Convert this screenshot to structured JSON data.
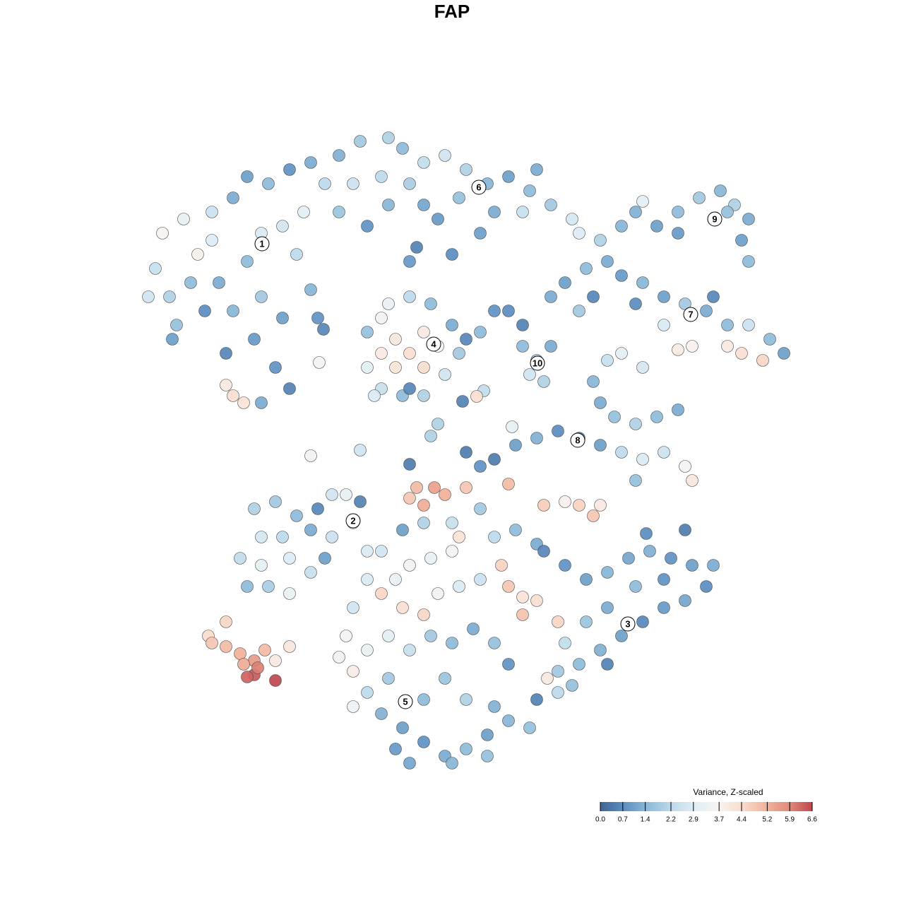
{
  "chart_data": {
    "type": "scatter",
    "title": "FAP",
    "xlim": [
      0,
      1280
    ],
    "ylim": [
      1280,
      0
    ],
    "x": [
      230,
      260,
      220,
      240,
      280,
      300,
      330,
      350,
      380,
      410,
      440,
      370,
      400,
      420,
      350,
      310,
      290,
      330,
      370,
      400,
      360,
      320,
      390,
      410,
      370,
      330,
      320,
      345,
      250,
      210,
      440,
      450,
      270,
      300,
      430,
      480,
      510,
      550,
      570,
      600,
      630,
      660,
      690,
      720,
      750,
      780,
      810,
      820,
      700,
      650,
      600,
      550,
      520,
      480,
      460,
      500,
      540,
      580,
      620,
      680,
      740,
      760,
      590,
      640,
      580,
      520,
      540,
      560,
      580,
      600,
      620,
      600,
      560,
      540,
      520,
      540,
      570,
      600,
      630,
      650,
      640,
      610,
      580,
      550,
      530,
      580,
      660,
      680,
      700,
      760,
      740,
      780,
      770,
      750,
      780,
      800,
      720,
      740,
      900,
      930,
      960,
      990,
      1020,
      1040,
      1060,
      1050,
      1030,
      960,
      880,
      1060,
      910,
      860,
      880,
      910,
      940,
      970,
      1000,
      1030,
      1060,
      1090,
      1110,
      1080,
      1050,
      1030,
      980,
      960,
      940,
      900,
      1010,
      850,
      830,
      820,
      840,
      840,
      860,
      880,
      910,
      850,
      870,
      900,
      930,
      960,
      820,
      850,
      880,
      910,
      940,
      970,
      980,
      900,
      790,
      760,
      730,
      700,
      680,
      660,
      620,
      360,
      390,
      420,
      450,
      470,
      490,
      500,
      470,
      440,
      400,
      370,
      340,
      370,
      410,
      440,
      410,
      380,
      350,
      460,
      520,
      510,
      590,
      615,
      630,
      600,
      580,
      660,
      720,
      770,
      800,
      820,
      840,
      850,
      650,
      640,
      610,
      580,
      560,
      540,
      570,
      600,
      620,
      650,
      680,
      710,
      720,
      740,
      760,
      740,
      790,
      700,
      730,
      760,
      680,
      640,
      600,
      570,
      540,
      520,
      500,
      490,
      480,
      500,
      520,
      550,
      580,
      610,
      640,
      670,
      700,
      720,
      550,
      520,
      500,
      540,
      570,
      600,
      630,
      660,
      690,
      720,
      750,
      700,
      660,
      630,
      600,
      560,
      580,
      640,
      690,
      760,
      775,
      800,
      830,
      860,
      890,
      920,
      950,
      980,
      1010,
      1000,
      970,
      940,
      910,
      880,
      850,
      820,
      790,
      800,
      830,
      860,
      900,
      940,
      970,
      915,
      790,
      810,
      860,
      770,
      440,
      510,
      610,
      685,
      675,
      725,
      655,
      580,
      458,
      452,
      244,
      295,
      300,
      320,
      340,
      360,
      375,
      390,
      410,
      320,
      360,
      350,
      365,
      390,
      345
    ],
    "y": [
      330,
      310,
      380,
      420,
      360,
      300,
      280,
      250,
      260,
      240,
      230,
      330,
      320,
      360,
      370,
      400,
      440,
      440,
      420,
      450,
      480,
      500,
      520,
      550,
      570,
      560,
      545,
      570,
      460,
      420,
      410,
      450,
      400,
      340,
      300,
      220,
      200,
      195,
      210,
      230,
      220,
      240,
      260,
      250,
      270,
      290,
      310,
      330,
      300,
      280,
      290,
      290,
      320,
      300,
      260,
      260,
      250,
      260,
      310,
      330,
      300,
      240,
      350,
      360,
      370,
      470,
      450,
      480,
      500,
      470,
      490,
      520,
      520,
      500,
      520,
      550,
      560,
      560,
      530,
      500,
      460,
      430,
      420,
      430,
      560,
      550,
      480,
      470,
      440,
      510,
      490,
      490,
      540,
      530,
      420,
      400,
      440,
      460,
      300,
      320,
      300,
      280,
      270,
      290,
      310,
      340,
      300,
      330,
      320,
      370,
      285,
      370,
      390,
      400,
      420,
      430,
      440,
      460,
      460,
      480,
      500,
      510,
      500,
      490,
      490,
      495,
      460,
      430,
      420,
      340,
      380,
      440,
      420,
      540,
      510,
      500,
      520,
      570,
      590,
      600,
      590,
      580,
      620,
      630,
      640,
      650,
      640,
      660,
      680,
      680,
      610,
      620,
      630,
      650,
      660,
      640,
      600,
      720,
      710,
      730,
      720,
      700,
      700,
      740,
      760,
      750,
      760,
      760,
      790,
      800,
      790,
      810,
      840,
      830,
      830,
      790,
      780,
      710,
      690,
      690,
      700,
      715,
      705,
      690,
      685,
      715,
      710,
      715,
      730,
      715,
      760,
      780,
      790,
      800,
      820,
      840,
      860,
      870,
      840,
      830,
      820,
      800,
      830,
      845,
      850,
      870,
      880,
      760,
      750,
      770,
      720,
      740,
      740,
      750,
      780,
      820,
      860,
      900,
      930,
      950,
      920,
      900,
      920,
      900,
      910,
      890,
      910,
      940,
      960,
      980,
      1000,
      1010,
      1030,
      1050,
      1070,
      1060,
      1040,
      1020,
      1030,
      1000,
      990,
      960,
      990,
      1060,
      1080,
      1080,
      1070,
      990,
      960,
      800,
      820,
      810,
      790,
      780,
      790,
      800,
      800,
      830,
      850,
      860,
      880,
      900,
      920,
      940,
      950,
      910,
      880,
      860,
      830,
      820,
      750,
      755,
      980,
      970,
      940,
      780,
      645,
      637,
      617,
      553,
      561,
      604,
      568,
      657,
      466,
      513,
      480,
      900,
      910,
      915,
      925,
      935,
      920,
      935,
      915,
      880,
      955,
      958,
      945,
      963,
      940
    ],
    "values": [
      3.6,
      3.2,
      2.4,
      2.0,
      3.8,
      2.5,
      1.2,
      1.0,
      1.5,
      0.8,
      1.2,
      2.8,
      2.6,
      2.2,
      1.5,
      1.2,
      0.7,
      1.4,
      1.8,
      1.0,
      0.9,
      0.6,
      0.8,
      0.5,
      1.2,
      4.3,
      4.0,
      4.2,
      1.6,
      2.6,
      1.4,
      0.8,
      1.5,
      2.9,
      3.0,
      1.3,
      1.8,
      2.0,
      1.5,
      2.3,
      2.6,
      2.0,
      1.4,
      1.0,
      1.5,
      1.8,
      2.7,
      2.9,
      1.2,
      1.6,
      1.1,
      1.4,
      0.8,
      1.7,
      2.2,
      2.5,
      2.2,
      1.9,
      0.9,
      1.0,
      2.4,
      1.2,
      0.5,
      0.7,
      0.9,
      1.6,
      3.5,
      4.1,
      4.3,
      4.0,
      3.6,
      4.4,
      4.2,
      4.0,
      3.0,
      2.4,
      1.5,
      2.0,
      2.6,
      1.8,
      1.2,
      1.5,
      2.2,
      3.2,
      2.8,
      0.6,
      0.6,
      1.5,
      0.8,
      1.8,
      1.5,
      1.2,
      2.0,
      2.6,
      1.2,
      1.0,
      0.7,
      0.5,
      1.3,
      1.0,
      1.5,
      1.8,
      1.4,
      2.0,
      1.2,
      1.0,
      1.6,
      0.9,
      1.4,
      1.5,
      3.0,
      1.2,
      0.9,
      1.4,
      1.0,
      1.8,
      1.2,
      1.5,
      2.5,
      1.5,
      1.0,
      4.5,
      4.3,
      4.0,
      3.8,
      3.9,
      2.8,
      0.7,
      0.6,
      2.0,
      1.5,
      1.8,
      0.6,
      1.4,
      2.4,
      3.0,
      2.7,
      1.2,
      1.6,
      2.0,
      1.5,
      1.2,
      0.5,
      1.0,
      2.2,
      2.8,
      2.5,
      3.6,
      4.1,
      1.6,
      0.7,
      1.3,
      1.0,
      0.4,
      0.8,
      0.4,
      2.0,
      2.0,
      1.8,
      1.5,
      0.6,
      2.6,
      3.2,
      3.0,
      2.5,
      1.2,
      2.2,
      2.7,
      2.3,
      3.1,
      2.9,
      2.4,
      3.3,
      1.9,
      1.5,
      1.0,
      2.8,
      0.5,
      5.0,
      5.5,
      5.2,
      5.3,
      4.8,
      4.8,
      5.0,
      4.7,
      3.8,
      4.6,
      4.8,
      4.0,
      4.2,
      3.6,
      3.2,
      3.5,
      3.2,
      4.5,
      4.3,
      4.5,
      3.5,
      2.8,
      2.5,
      4.6,
      4.8,
      4.2,
      4.3,
      4.9,
      4.5,
      2.2,
      1.5,
      1.2,
      1.8,
      2.4,
      2.0,
      1.0,
      2.6,
      2.8,
      2.6,
      3.6,
      3.4,
      3.9,
      3.3,
      3.0,
      2.4,
      1.8,
      1.5,
      1.2,
      1.6,
      0.8,
      1.8,
      2.2,
      3.3,
      1.3,
      1.0,
      0.8,
      1.2,
      1.5,
      1.0,
      1.4,
      1.6,
      1.3,
      2.0,
      1.7,
      1.5,
      0.9,
      1.1,
      1.4,
      1.6,
      0.5,
      4.0,
      0.8,
      1.0,
      1.4,
      1.1,
      1.3,
      0.8,
      1.0,
      1.2,
      0.7,
      1.1,
      0.9,
      0.6,
      1.0,
      1.3,
      1.5,
      1.8,
      2.3,
      1.7,
      1.2,
      1.5,
      0.8,
      0.4,
      0.7,
      2.2,
      1.6,
      0.5,
      0.6,
      3.5,
      2.6,
      2.0,
      2.3,
      4.3,
      3.2,
      0.5,
      0.4,
      0.6,
      3.6,
      1.0,
      4.4,
      4.8,
      5.0,
      5.2,
      5.6,
      5.0,
      4.0,
      4.1,
      4.5,
      6.4,
      6.3,
      6.0,
      6.6,
      5.3
    ],
    "annotations": [
      {
        "label": "1",
        "x": 371,
        "y": 345
      },
      {
        "label": "2",
        "x": 500,
        "y": 737
      },
      {
        "label": "3",
        "x": 889,
        "y": 883
      },
      {
        "label": "4",
        "x": 614,
        "y": 487
      },
      {
        "label": "5",
        "x": 574,
        "y": 993
      },
      {
        "label": "6",
        "x": 678,
        "y": 265
      },
      {
        "label": "7",
        "x": 978,
        "y": 445
      },
      {
        "label": "8",
        "x": 818,
        "y": 623
      },
      {
        "label": "9",
        "x": 1012,
        "y": 310
      },
      {
        "label": "10",
        "x": 761,
        "y": 514
      }
    ],
    "colorbar": {
      "title": "Variance, Z-scaled",
      "lim": [
        0,
        6.6
      ],
      "ticks": [
        {
          "value": 0,
          "label": "0.0"
        },
        0.7,
        1.4,
        2.2,
        2.9,
        3.7,
        4.4,
        5.2,
        5.9,
        6.6
      ],
      "colors": [
        "#3f6594",
        "#5b8fc2",
        "#8cbad8",
        "#bcd9ea",
        "#e0edf5",
        "#f7f4f2",
        "#f9dccc",
        "#f2b49c",
        "#e38b7c",
        "#c0474f"
      ]
    }
  }
}
